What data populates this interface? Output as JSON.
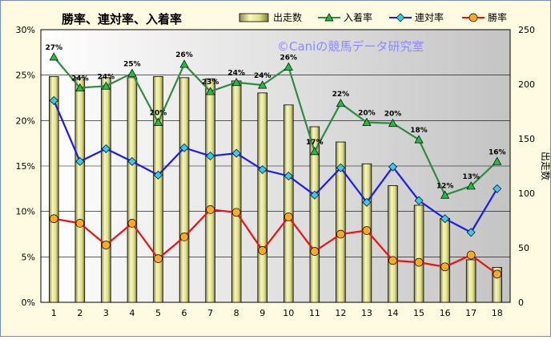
{
  "chart_data": {
    "type": "bar+line",
    "title": "勝率、連対率、入着率",
    "watermark": "©Caniの競馬データ研究室",
    "categories": [
      "1",
      "2",
      "3",
      "4",
      "5",
      "6",
      "7",
      "8",
      "9",
      "10",
      "11",
      "12",
      "13",
      "14",
      "15",
      "16",
      "17",
      "18"
    ],
    "y_left": {
      "label": "",
      "ticks": [
        "0%",
        "5%",
        "10%",
        "15%",
        "20%",
        "25%",
        "30%"
      ],
      "lim": [
        0,
        30
      ]
    },
    "y_right": {
      "label": "出走数",
      "ticks": [
        "0",
        "50",
        "100",
        "150",
        "200",
        "250"
      ],
      "lim": [
        0,
        250
      ]
    },
    "bars": {
      "name": "出走数",
      "axis": "right",
      "color": "#e8e89a",
      "values": [
        207,
        206,
        206,
        206,
        207,
        206,
        205,
        203,
        192,
        181,
        161,
        147,
        127,
        107,
        89,
        77,
        39,
        32
      ]
    },
    "series": [
      {
        "name": "入着率",
        "axis": "left",
        "color": "#2e8b3f",
        "marker": "triangle",
        "values": [
          27.0,
          23.6,
          23.8,
          25.2,
          19.8,
          26.2,
          23.2,
          24.2,
          23.9,
          25.9,
          16.6,
          21.9,
          19.8,
          19.7,
          17.9,
          11.8,
          12.8,
          15.5
        ],
        "labels": [
          "27%",
          "24%",
          "24%",
          "25%",
          "20%",
          "26%",
          "23%",
          "24%",
          "24%",
          "26%",
          "17%",
          "22%",
          "20%",
          "20%",
          "18%",
          "12%",
          "13%",
          "16%"
        ]
      },
      {
        "name": "連対率",
        "axis": "left",
        "color": "#1a1aee",
        "marker": "diamond",
        "values": [
          22.2,
          15.5,
          16.9,
          15.5,
          14.0,
          17.0,
          16.1,
          16.4,
          14.6,
          13.9,
          11.8,
          14.8,
          11.0,
          14.9,
          11.2,
          9.2,
          7.7,
          12.5
        ]
      },
      {
        "name": "勝率",
        "axis": "left",
        "color": "#ee1111",
        "marker": "circle",
        "values": [
          9.2,
          8.7,
          6.3,
          8.7,
          4.8,
          7.2,
          10.2,
          9.9,
          5.7,
          9.4,
          5.6,
          7.5,
          7.9,
          4.6,
          4.4,
          3.9,
          5.2,
          3.1
        ]
      }
    ],
    "legend": [
      "出走数",
      "入着率",
      "連対率",
      "勝率"
    ],
    "legend_position": "top-right",
    "grid": "horizontal"
  }
}
